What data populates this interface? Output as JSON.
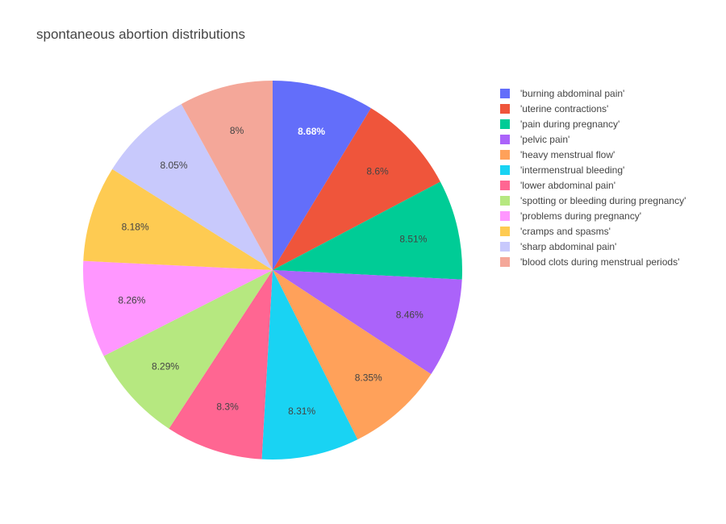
{
  "chart_data": {
    "type": "pie",
    "title": "spontaneous abortion distributions",
    "labels": [
      "'burning abdominal pain'",
      "'uterine contractions'",
      "'pain during pregnancy'",
      "'pelvic pain'",
      "'heavy menstrual flow'",
      "'intermenstrual bleeding'",
      "'lower abdominal pain'",
      "'spotting or bleeding during pregnancy'",
      "'problems during pregnancy'",
      "'cramps and spasms'",
      "'sharp abdominal pain'",
      "'blood clots during menstrual periods'"
    ],
    "values": [
      8.68,
      8.6,
      8.51,
      8.46,
      8.35,
      8.31,
      8.3,
      8.29,
      8.26,
      8.18,
      8.05,
      8.0
    ],
    "value_labels": [
      "8.68%",
      "8.6%",
      "8.51%",
      "8.46%",
      "8.35%",
      "8.31%",
      "8.3%",
      "8.29%",
      "8.26%",
      "8.18%",
      "8.05%",
      "8%"
    ],
    "colors": [
      "#636efa",
      "#EF553B",
      "#00cc96",
      "#ab63fa",
      "#FFA15A",
      "#19d3f3",
      "#FF6692",
      "#B6E880",
      "#FF97FF",
      "#FECB52",
      "#c8c9fc",
      "#f4a799"
    ],
    "label_colors": [
      "#ffffff",
      "#444444",
      "#444444",
      "#444444",
      "#444444",
      "#444444",
      "#444444",
      "#444444",
      "#444444",
      "#444444",
      "#444444",
      "#444444"
    ],
    "direction": "clockwise",
    "start": "top",
    "legend_position": "right"
  }
}
